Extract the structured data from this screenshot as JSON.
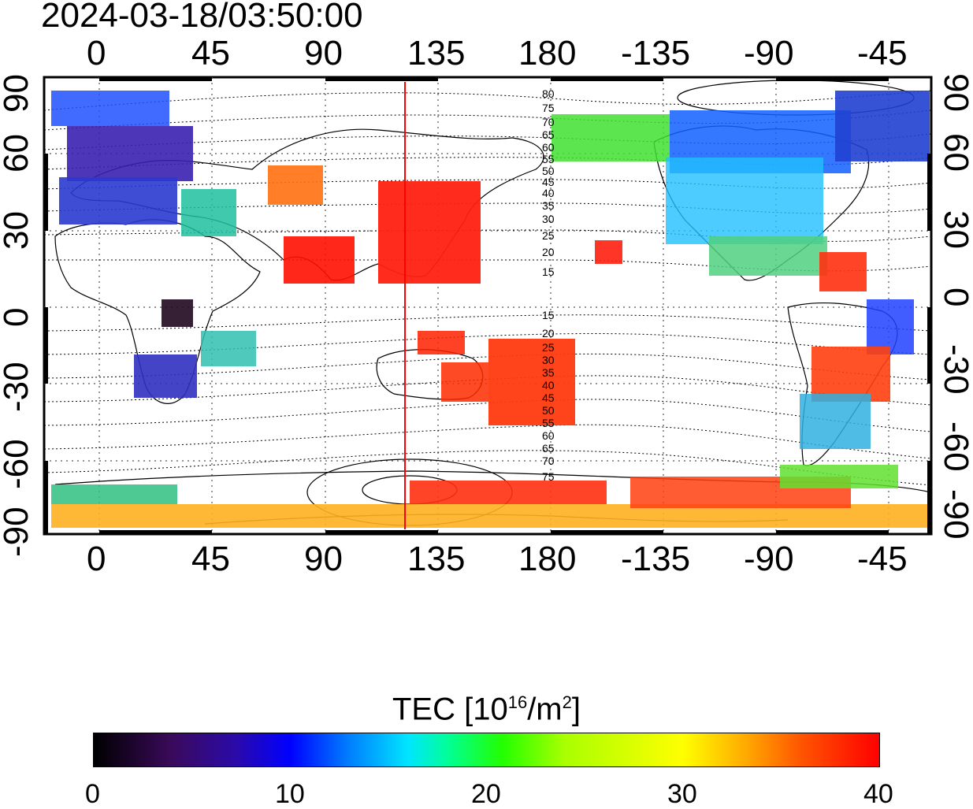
{
  "timestamp": "2024-03-18/03:50:00",
  "top_axis_labels": [
    "0",
    "45",
    "90",
    "135",
    "180",
    "-135",
    "-90",
    "-45"
  ],
  "bottom_axis_labels": [
    "0",
    "45",
    "90",
    "135",
    "180",
    "-135",
    "-90",
    "-45"
  ],
  "left_axis_labels": [
    "90",
    "60",
    "30",
    "0",
    "-30",
    "-60",
    "-90"
  ],
  "right_axis_labels": [
    "90",
    "60",
    "30",
    "0",
    "-30",
    "-60",
    "-90"
  ],
  "magnetic_contour_labels_north": [
    "80",
    "75",
    "70",
    "65",
    "60",
    "55",
    "50",
    "45",
    "40",
    "35",
    "30",
    "25",
    "20",
    "15"
  ],
  "magnetic_contour_labels_south": [
    "15",
    "20",
    "25",
    "30",
    "35",
    "40",
    "45",
    "50",
    "55",
    "60",
    "65",
    "70",
    "75"
  ],
  "colorbar": {
    "title_main": "TEC  [10",
    "title_exp1": "16",
    "title_mid": "/m",
    "title_exp2": "2",
    "title_end": "]",
    "min_label": "0",
    "labels": [
      "0",
      "10",
      "20",
      "30",
      "40"
    ],
    "range": [
      0,
      40
    ]
  },
  "colors": {
    "map_border": "#000000",
    "meridian_line": "#ff0000",
    "low": "#000000",
    "mid_low": "#0000ff",
    "mid": "#00ff99",
    "mid_high": "#ffff00",
    "high": "#ff0000"
  },
  "meridian_longitude": 125
}
